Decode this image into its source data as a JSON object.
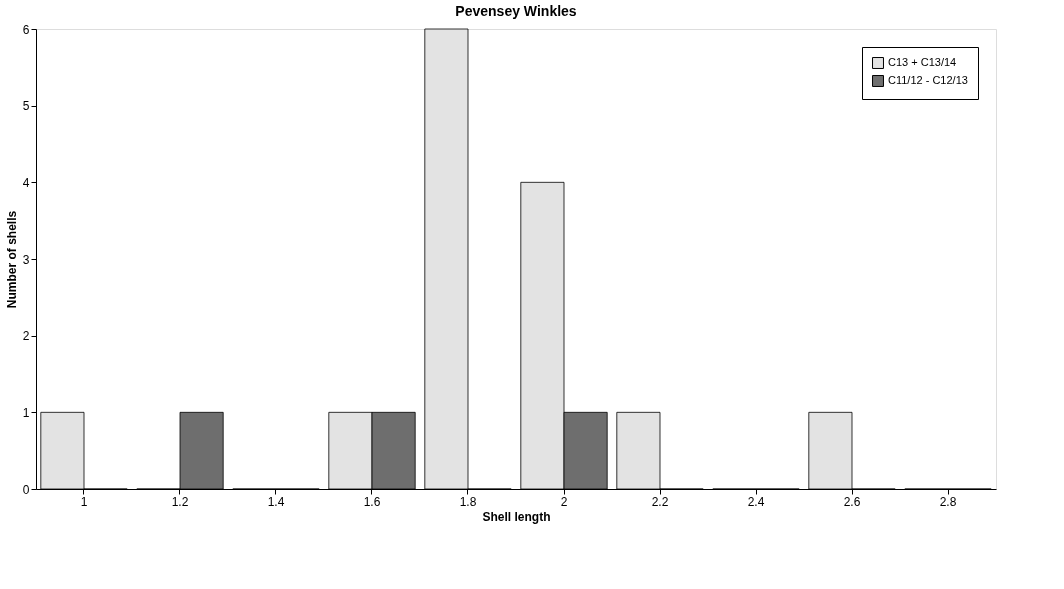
{
  "chart_data": {
    "type": "bar",
    "title": "Pevensey Winkles",
    "xlabel": "Shell length",
    "ylabel": "Number of shells",
    "categories": [
      "1",
      "1.2",
      "1.4",
      "1.6",
      "1.8",
      "2",
      "2.2",
      "2.4",
      "2.6",
      "2.8"
    ],
    "series": [
      {
        "name": "C13 + C13/14",
        "color": "#e3e3e3",
        "values": [
          1,
          0,
          0,
          1,
          6,
          4,
          1,
          0,
          1,
          0
        ]
      },
      {
        "name": "C11/12 - C12/13",
        "color": "#6e6e6e",
        "values": [
          0,
          1,
          0,
          1,
          0,
          1,
          0,
          0,
          0,
          0
        ]
      }
    ],
    "ylim": [
      0,
      6
    ],
    "yticks": [
      0,
      1,
      2,
      3,
      4,
      5,
      6
    ],
    "grid": false,
    "legend": "top right"
  }
}
